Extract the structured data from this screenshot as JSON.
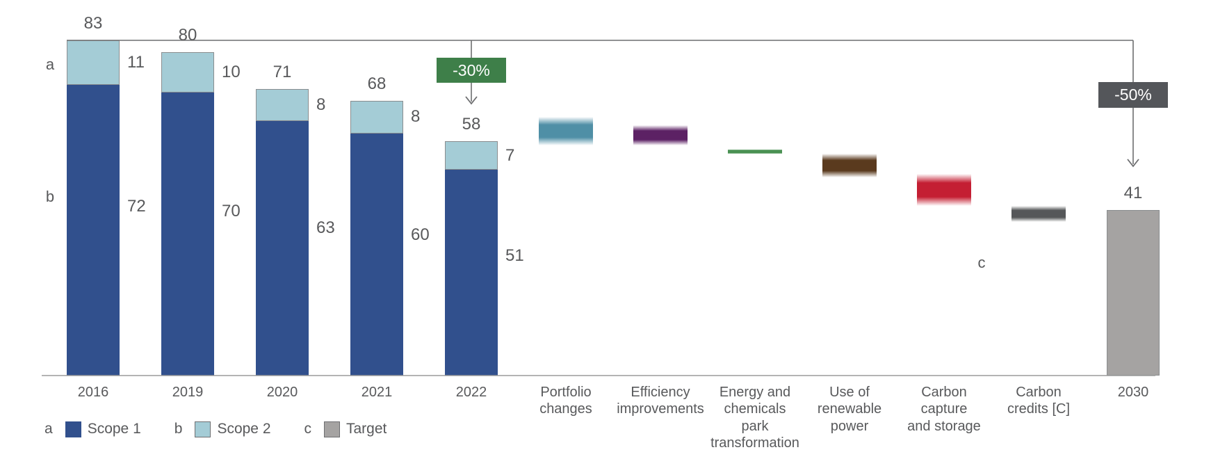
{
  "chart_data": {
    "type": "bar",
    "subtype": "stacked-bars-with-waterfall-deltas-and-target-bar",
    "title": "",
    "xlabel": "",
    "ylabel": "",
    "ylim": [
      0,
      83
    ],
    "grid": false,
    "legend_position": "bottom-left",
    "reference_line_value": 83,
    "columns": [
      {
        "type": "stacked",
        "label": "2016",
        "total": 83,
        "scope1": 72,
        "scope2": 11
      },
      {
        "type": "stacked",
        "label": "2019",
        "total": 80,
        "scope1": 70,
        "scope2": 10
      },
      {
        "type": "stacked",
        "label": "2020",
        "total": 71,
        "scope1": 63,
        "scope2": 8
      },
      {
        "type": "stacked",
        "label": "2021",
        "total": 68,
        "scope1": 60,
        "scope2": 8
      },
      {
        "type": "stacked",
        "label": "2022",
        "total": 58,
        "scope1": 51,
        "scope2": 7
      },
      {
        "type": "delta",
        "label": "Portfolio\nchanges",
        "from": 64,
        "to": 57,
        "color": "#4f8fa6"
      },
      {
        "type": "delta",
        "label": "Efficiency\nimprovements",
        "from": 62,
        "to": 57,
        "color": "#5c2164"
      },
      {
        "type": "delta",
        "label": "Energy and\nchemicals\npark\ntransformation",
        "from": 56,
        "to": 55,
        "color": "#4a9153"
      },
      {
        "type": "delta",
        "label": "Use of\nrenewable\npower",
        "from": 55,
        "to": 49,
        "color": "#5a3a1e"
      },
      {
        "type": "delta",
        "label": "Carbon\ncapture\nand storage",
        "from": 50,
        "to": 42,
        "color": "#c41f33"
      },
      {
        "type": "delta",
        "label": "Carbon\ncredits [C]",
        "from": 42,
        "to": 38,
        "color": "#555759"
      },
      {
        "type": "target",
        "label": "2030",
        "value": 41,
        "color": "#a5a3a2"
      }
    ],
    "annotations": [
      {
        "text": "-30%",
        "bg": "#3e7f49",
        "column": 4
      },
      {
        "text": "-50%",
        "bg": "#54565a",
        "column": 11
      }
    ],
    "markers": [
      {
        "text": "a"
      },
      {
        "text": "b"
      },
      {
        "text": "c"
      }
    ],
    "legend": [
      {
        "key": "a",
        "label": "Scope 1",
        "color": "#31508d",
        "border": "#31508d"
      },
      {
        "key": "b",
        "label": "Scope 2",
        "color": "#a4ccd6",
        "border": "#6d6e70"
      },
      {
        "key": "c",
        "label": "Target",
        "color": "#a5a3a2",
        "border": "#6d6e70"
      }
    ],
    "colors": {
      "scope1": "#31508d",
      "scope2": "#a4ccd6",
      "target": "#a5a3a2",
      "line": "#6d6e70",
      "axis": "#9b9b9b",
      "text": "#58595b"
    }
  }
}
